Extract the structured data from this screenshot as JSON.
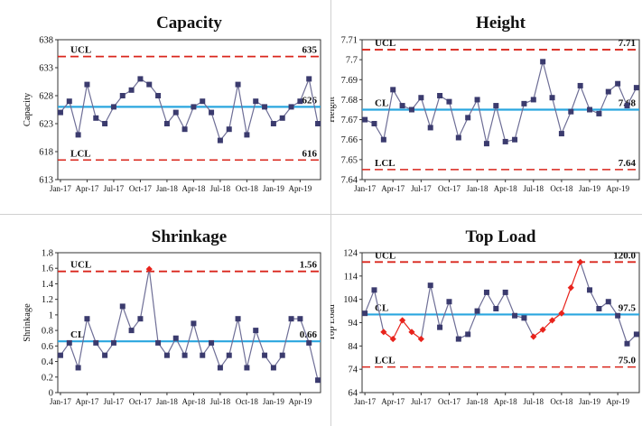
{
  "chart_data": [
    {
      "type": "line",
      "title": "Capacity",
      "ylabel": "Capacity",
      "xlabel": "",
      "ylim": [
        613,
        638
      ],
      "yticks": [
        "613",
        "618",
        "623",
        "628",
        "633",
        "638"
      ],
      "x_tick_labels": [
        "Jan-17",
        "Apr-17",
        "Jul-17",
        "Oct-17",
        "Jan-18",
        "Apr-18",
        "Jul-18",
        "Oct-18",
        "Jan-19",
        "Apr-19"
      ],
      "values": [
        625,
        627,
        621,
        630,
        624,
        623,
        626,
        628,
        629,
        631,
        630,
        628,
        623,
        625,
        622,
        626,
        627,
        625,
        620,
        622,
        630,
        621,
        627,
        626,
        623,
        624,
        626,
        627,
        631,
        623
      ],
      "ucl": {
        "label": "UCL",
        "value": 635,
        "value_label": "635"
      },
      "cl": {
        "label": "",
        "value": 626,
        "value_label": "626"
      },
      "lcl": {
        "label": "LCL",
        "value": 616.5,
        "value_label": "616"
      },
      "highlight_points": [],
      "colors": {
        "series": "#6e6e96",
        "marker": "#3b3b6e",
        "limits": "#d9261c",
        "center": "#2aa6df",
        "highlight": "#e8231c"
      }
    },
    {
      "type": "line",
      "title": "Height",
      "ylabel": "Height",
      "xlabel": "",
      "ylim": [
        7.64,
        7.71
      ],
      "yticks": [
        "7.64",
        "7.65",
        "7.66",
        "7.67",
        "7.68",
        "7.69",
        "7.7",
        "7.71"
      ],
      "x_tick_labels": [
        "Jan-17",
        "Apr-17",
        "Jul-17",
        "Oct-17",
        "Jan-18",
        "Apr-18",
        "Jul-18",
        "Oct-18",
        "Jan-19",
        "Apr-19"
      ],
      "values": [
        7.67,
        7.668,
        7.66,
        7.685,
        7.677,
        7.675,
        7.681,
        7.666,
        7.682,
        7.679,
        7.661,
        7.671,
        7.68,
        7.658,
        7.677,
        7.659,
        7.66,
        7.678,
        7.68,
        7.699,
        7.681,
        7.663,
        7.674,
        7.687,
        7.675,
        7.673,
        7.684,
        7.688,
        7.677,
        7.686
      ],
      "ucl": {
        "label": "UCL",
        "value": 7.705,
        "value_label": "7.71"
      },
      "cl": {
        "label": "CL",
        "value": 7.675,
        "value_label": "7.68"
      },
      "lcl": {
        "label": "LCL",
        "value": 7.645,
        "value_label": "7.64"
      },
      "highlight_points": [],
      "colors": {
        "series": "#6e6e96",
        "marker": "#3b3b6e",
        "limits": "#d9261c",
        "center": "#2aa6df",
        "highlight": "#e8231c"
      }
    },
    {
      "type": "line",
      "title": "Shrinkage",
      "ylabel": "Shrinkage",
      "xlabel": "",
      "ylim": [
        0,
        1.8
      ],
      "yticks": [
        "0",
        "0.2",
        "0.4",
        "0.6",
        "0.8",
        "1",
        "1.2",
        "1.4",
        "1.6",
        "1.8"
      ],
      "x_tick_labels": [
        "Jan-17",
        "Apr-17",
        "Jul-17",
        "Oct-17",
        "Jan-18",
        "Apr-18",
        "Jul-18",
        "Oct-18",
        "Jan-19",
        "Apr-19"
      ],
      "values": [
        0.48,
        0.64,
        0.32,
        0.95,
        0.64,
        0.48,
        0.64,
        1.11,
        0.8,
        0.95,
        1.59,
        0.64,
        0.48,
        0.7,
        0.48,
        0.89,
        0.48,
        0.64,
        0.32,
        0.48,
        0.95,
        0.32,
        0.8,
        0.48,
        0.32,
        0.48,
        0.95,
        0.95,
        0.64,
        0.16
      ],
      "ucl": {
        "label": "UCL",
        "value": 1.56,
        "value_label": "1.56"
      },
      "cl": {
        "label": "CL",
        "value": 0.66,
        "value_label": "0.66"
      },
      "lcl": {
        "label": "",
        "value": null,
        "value_label": ""
      },
      "highlight_points": [
        10
      ],
      "colors": {
        "series": "#6e6e96",
        "marker": "#3b3b6e",
        "limits": "#d9261c",
        "center": "#2aa6df",
        "highlight": "#e8231c"
      }
    },
    {
      "type": "line",
      "title": "Top Load",
      "ylabel": "Top Load",
      "xlabel": "",
      "ylim": [
        64,
        124
      ],
      "yticks": [
        "64",
        "74",
        "84",
        "94",
        "104",
        "114",
        "124"
      ],
      "x_tick_labels": [
        "Jan-17",
        "Apr-17",
        "Jul-17",
        "Oct-17",
        "Jan-18",
        "Apr-18",
        "Jul-18",
        "Oct-18",
        "Jan-19",
        "Apr-19"
      ],
      "values": [
        98,
        108,
        90,
        87,
        95,
        90,
        87,
        110,
        92,
        103,
        87,
        89,
        99,
        107,
        100,
        107,
        97,
        96,
        88,
        91,
        95,
        98,
        109,
        120,
        108,
        100,
        103,
        97,
        85,
        89
      ],
      "ucl": {
        "label": "UCL",
        "value": 120,
        "value_label": "120.0"
      },
      "cl": {
        "label": "CL",
        "value": 97.5,
        "value_label": "97.5"
      },
      "lcl": {
        "label": "LCL",
        "value": 75,
        "value_label": "75.0"
      },
      "highlight_points": [
        2,
        3,
        4,
        5,
        6,
        18,
        19,
        20,
        21,
        22,
        23
      ],
      "colors": {
        "series": "#6e6e96",
        "marker": "#3b3b6e",
        "limits": "#d9261c",
        "center": "#2aa6df",
        "highlight": "#e8231c"
      }
    }
  ]
}
